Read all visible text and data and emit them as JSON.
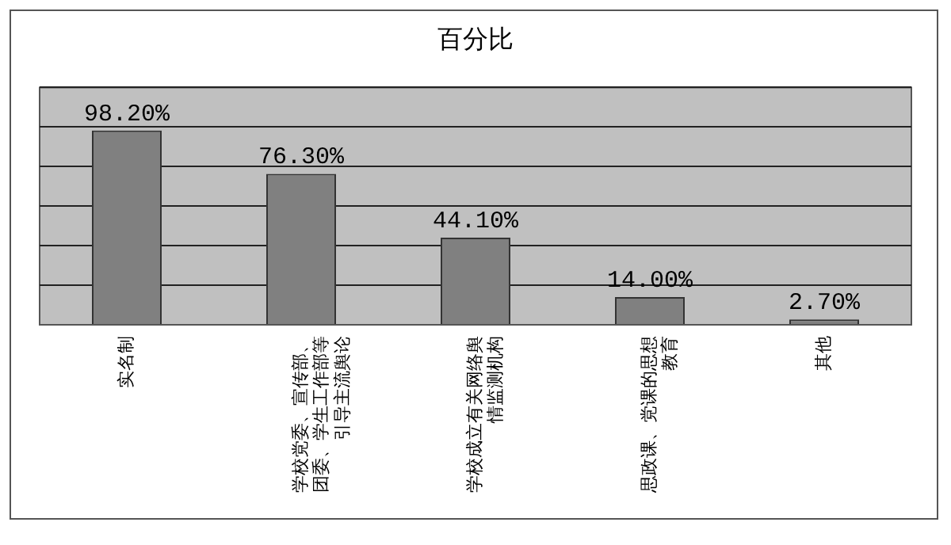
{
  "chart_data": {
    "type": "bar",
    "title": "百分比",
    "categories": [
      "实名制",
      "学校党委、宣传部、团委、学生工作部等引导主流舆论",
      "学校成立有关网络舆情监测机构",
      "思政课、党课的思想教育",
      "其他"
    ],
    "values": [
      98.2,
      76.3,
      44.1,
      14.0,
      2.7
    ],
    "value_labels": [
      "98.20%",
      "76.30%",
      "44.10%",
      "14.00%",
      "2.70%"
    ],
    "color": "#808080",
    "ylim": [
      0,
      120
    ],
    "yticks": [
      {
        "value": 0,
        "label": null
      },
      {
        "value": 20,
        "label": null
      },
      {
        "value": 40,
        "label": null
      },
      {
        "value": 60,
        "label": null
      },
      {
        "value": 80,
        "label": null
      },
      {
        "value": 100,
        "label": null
      },
      {
        "value": 120,
        "label": null
      }
    ],
    "grid": "y",
    "tick_labels": "x",
    "legend": false
  }
}
